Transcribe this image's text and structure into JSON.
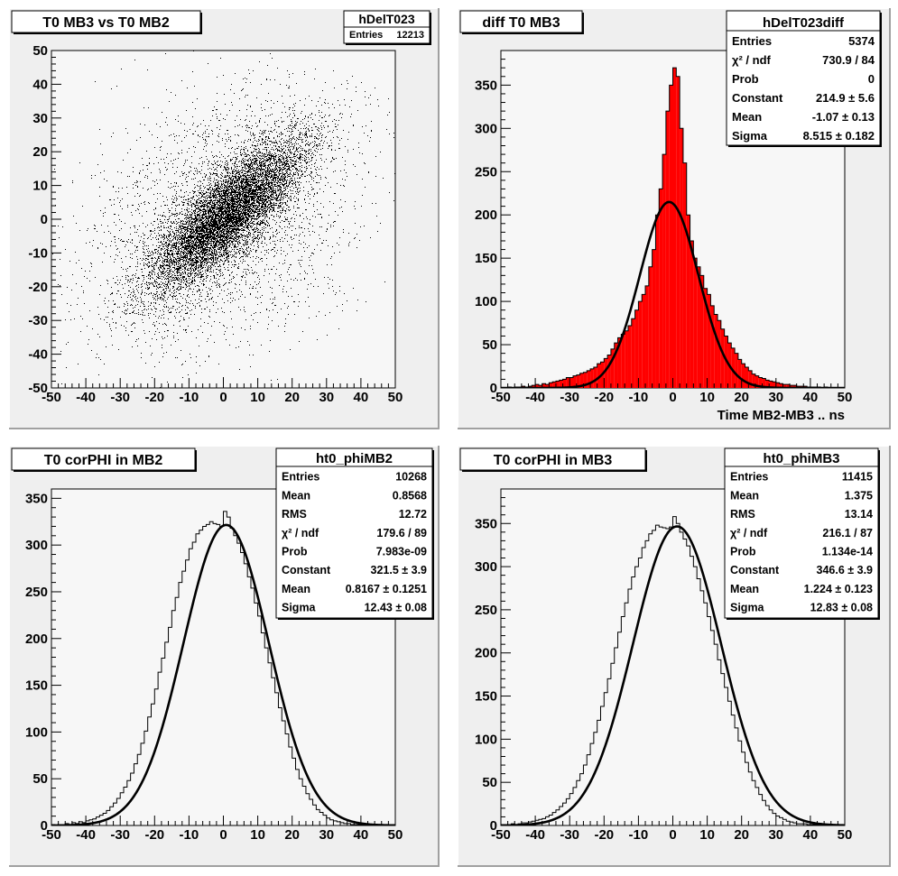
{
  "canvas": {
    "background": "#ffffff",
    "pad_fill": "#efefef",
    "frame_fill": "#f7f7f7",
    "hist_fill": "#ff0000",
    "ink": "#000000"
  },
  "chart_data": [
    {
      "type": "scatter",
      "title": "T0 MB3 vs T0 MB2",
      "xlabel": "",
      "ylabel": "",
      "xlim": [
        -50,
        50
      ],
      "ylim": [
        -50,
        50
      ],
      "xticks": [
        -50,
        -40,
        -30,
        -20,
        -10,
        0,
        10,
        20,
        30,
        40,
        50
      ],
      "yticks": [
        -50,
        -40,
        -30,
        -20,
        -10,
        0,
        10,
        20,
        30,
        40,
        50
      ],
      "stats": {
        "name": "hDelT023",
        "rows": [
          {
            "label": "Entries",
            "value": "12213"
          }
        ]
      },
      "entries": 12213,
      "distribution": {
        "core": {
          "fraction": 0.74,
          "mean_x": 1.0,
          "mean_y": 1.5,
          "sigma": 11.5,
          "correlation": 0.82
        },
        "halo": {
          "fraction": 0.26,
          "mean_x": 0,
          "mean_y": 0,
          "sigma": 20,
          "correlation": 0.3
        }
      }
    },
    {
      "type": "bar",
      "title": "diff T0 MB3",
      "xlabel": "Time MB2-MB3  ..  ns",
      "ylabel": "",
      "xlim": [
        -50,
        50
      ],
      "ylim": [
        0,
        390
      ],
      "xticks": [
        -50,
        -40,
        -30,
        -20,
        -10,
        0,
        10,
        20,
        30,
        40,
        50
      ],
      "yticks": [
        0,
        50,
        100,
        150,
        200,
        250,
        300,
        350
      ],
      "stats": {
        "name": "hDelT023diff",
        "rows": [
          {
            "label": "Entries",
            "value": "5374"
          },
          {
            "label": "χ² / ndf",
            "value": "730.9 / 84"
          },
          {
            "label": "Prob",
            "value": "0"
          },
          {
            "label": "Constant",
            "value": "214.9 ± 5.6"
          },
          {
            "label": "Mean",
            "value": "-1.07 ± 0.13"
          },
          {
            "label": "Sigma",
            "value": "8.515 ± 0.182"
          }
        ]
      },
      "fit": {
        "function": "gaus",
        "constant": 214.9,
        "mean": -1.07,
        "sigma": 8.515
      },
      "bin_width": 1,
      "x": [
        -50,
        -49,
        -48,
        -47,
        -46,
        -45,
        -44,
        -43,
        -42,
        -41,
        -40,
        -39,
        -38,
        -37,
        -36,
        -35,
        -34,
        -33,
        -32,
        -31,
        -30,
        -29,
        -28,
        -27,
        -26,
        -25,
        -24,
        -23,
        -22,
        -21,
        -20,
        -19,
        -18,
        -17,
        -16,
        -15,
        -14,
        -13,
        -12,
        -11,
        -10,
        -9,
        -8,
        -7,
        -6,
        -5,
        -4,
        -3,
        -2,
        -1,
        0,
        1,
        2,
        3,
        4,
        5,
        6,
        7,
        8,
        9,
        10,
        11,
        12,
        13,
        14,
        15,
        16,
        17,
        18,
        19,
        20,
        21,
        22,
        23,
        24,
        25,
        26,
        27,
        28,
        29,
        30,
        31,
        32,
        33,
        34,
        35,
        36,
        37,
        38,
        39,
        40,
        41,
        42,
        43,
        44,
        45,
        46,
        47,
        48,
        49
      ],
      "values": [
        0,
        0,
        1,
        0,
        1,
        1,
        2,
        1,
        2,
        3,
        4,
        3,
        5,
        4,
        6,
        7,
        8,
        9,
        10,
        12,
        12,
        14,
        15,
        17,
        18,
        20,
        22,
        24,
        28,
        30,
        34,
        38,
        45,
        52,
        58,
        62,
        66,
        72,
        80,
        90,
        100,
        108,
        118,
        140,
        160,
        200,
        230,
        270,
        320,
        350,
        370,
        360,
        300,
        260,
        200,
        170,
        150,
        140,
        130,
        115,
        108,
        95,
        85,
        78,
        68,
        60,
        52,
        46,
        40,
        33,
        28,
        24,
        20,
        16,
        14,
        12,
        11,
        9,
        8,
        7,
        6,
        5,
        4,
        4,
        3,
        3,
        2,
        2,
        2,
        1,
        1,
        1,
        1,
        0,
        1,
        0,
        0,
        0,
        0,
        0
      ]
    },
    {
      "type": "bar",
      "title": "T0 corPHI in MB2",
      "xlabel": "",
      "ylabel": "",
      "xlim": [
        -50,
        50
      ],
      "ylim": [
        0,
        360
      ],
      "xticks": [
        -50,
        -40,
        -30,
        -20,
        -10,
        0,
        10,
        20,
        30,
        40,
        50
      ],
      "yticks": [
        0,
        50,
        100,
        150,
        200,
        250,
        300,
        350
      ],
      "stats": {
        "name": "ht0_phiMB2",
        "rows": [
          {
            "label": "Entries",
            "value": "10268"
          },
          {
            "label": "Mean",
            "value": "0.8568"
          },
          {
            "label": "RMS",
            "value": "12.72"
          },
          {
            "label": "χ² / ndf",
            "value": "179.6 / 89"
          },
          {
            "label": "Prob",
            "value": "7.983e-09"
          },
          {
            "label": "Constant",
            "value": "321.5 ± 3.9"
          },
          {
            "label": "Mean",
            "value": "0.8167 ± 0.1251"
          },
          {
            "label": "Sigma",
            "value": "12.43 ± 0.08"
          }
        ]
      },
      "fit": {
        "function": "gaus",
        "constant": 321.5,
        "mean": 0.8167,
        "sigma": 12.43
      },
      "bin_width": 1,
      "x": [
        -50,
        -49,
        -48,
        -47,
        -46,
        -45,
        -44,
        -43,
        -42,
        -41,
        -40,
        -39,
        -38,
        -37,
        -36,
        -35,
        -34,
        -33,
        -32,
        -31,
        -30,
        -29,
        -28,
        -27,
        -26,
        -25,
        -24,
        -23,
        -22,
        -21,
        -20,
        -19,
        -18,
        -17,
        -16,
        -15,
        -14,
        -13,
        -12,
        -11,
        -10,
        -9,
        -8,
        -7,
        -6,
        -5,
        -4,
        -3,
        -2,
        -1,
        0,
        1,
        2,
        3,
        4,
        5,
        6,
        7,
        8,
        9,
        10,
        11,
        12,
        13,
        14,
        15,
        16,
        17,
        18,
        19,
        20,
        21,
        22,
        23,
        24,
        25,
        26,
        27,
        28,
        29,
        30,
        31,
        32,
        33,
        34,
        35,
        36,
        37,
        38,
        39,
        40,
        41,
        42,
        43,
        44,
        45,
        46,
        47,
        48,
        49
      ],
      "values": [
        1,
        0,
        1,
        1,
        2,
        1,
        3,
        2,
        4,
        3,
        5,
        6,
        7,
        9,
        11,
        13,
        16,
        20,
        24,
        29,
        35,
        41,
        48,
        56,
        66,
        76,
        88,
        101,
        116,
        130,
        146,
        164,
        179,
        196,
        212,
        230,
        244,
        260,
        272,
        284,
        296,
        303,
        312,
        316,
        320,
        322,
        325,
        323,
        322,
        320,
        336,
        330,
        318,
        310,
        302,
        292,
        280,
        266,
        254,
        238,
        224,
        206,
        190,
        174,
        158,
        142,
        126,
        112,
        98,
        84,
        72,
        60,
        50,
        42,
        34,
        28,
        22,
        17,
        14,
        11,
        8,
        6,
        5,
        4,
        3,
        2,
        2,
        1,
        1,
        1,
        1,
        0,
        1,
        0,
        0,
        0,
        0,
        0,
        0,
        0
      ]
    },
    {
      "type": "bar",
      "title": "T0 corPHI in MB3",
      "xlabel": "",
      "ylabel": "",
      "xlim": [
        -50,
        50
      ],
      "ylim": [
        0,
        390
      ],
      "xticks": [
        -50,
        -40,
        -30,
        -20,
        -10,
        0,
        10,
        20,
        30,
        40,
        50
      ],
      "yticks": [
        0,
        50,
        100,
        150,
        200,
        250,
        300,
        350
      ],
      "stats": {
        "name": "ht0_phiMB3",
        "rows": [
          {
            "label": "Entries",
            "value": "11415"
          },
          {
            "label": "Mean",
            "value": "1.375"
          },
          {
            "label": "RMS",
            "value": "13.14"
          },
          {
            "label": "χ² / ndf",
            "value": "216.1 / 87"
          },
          {
            "label": "Prob",
            "value": "1.134e-14"
          },
          {
            "label": "Constant",
            "value": "346.6 ± 3.9"
          },
          {
            "label": "Mean",
            "value": "1.224 ± 0.123"
          },
          {
            "label": "Sigma",
            "value": "12.83 ± 0.08"
          }
        ]
      },
      "fit": {
        "function": "gaus",
        "constant": 346.6,
        "mean": 1.224,
        "sigma": 12.83
      },
      "bin_width": 1,
      "x": [
        -50,
        -49,
        -48,
        -47,
        -46,
        -45,
        -44,
        -43,
        -42,
        -41,
        -40,
        -39,
        -38,
        -37,
        -36,
        -35,
        -34,
        -33,
        -32,
        -31,
        -30,
        -29,
        -28,
        -27,
        -26,
        -25,
        -24,
        -23,
        -22,
        -21,
        -20,
        -19,
        -18,
        -17,
        -16,
        -15,
        -14,
        -13,
        -12,
        -11,
        -10,
        -9,
        -8,
        -7,
        -6,
        -5,
        -4,
        -3,
        -2,
        -1,
        0,
        1,
        2,
        3,
        4,
        5,
        6,
        7,
        8,
        9,
        10,
        11,
        12,
        13,
        14,
        15,
        16,
        17,
        18,
        19,
        20,
        21,
        22,
        23,
        24,
        25,
        26,
        27,
        28,
        29,
        30,
        31,
        32,
        33,
        34,
        35,
        36,
        37,
        38,
        39,
        40,
        41,
        42,
        43,
        44,
        45,
        46,
        47,
        48,
        49
      ],
      "values": [
        1,
        1,
        0,
        2,
        1,
        2,
        3,
        3,
        4,
        5,
        6,
        7,
        8,
        10,
        12,
        15,
        18,
        22,
        26,
        31,
        37,
        44,
        52,
        60,
        70,
        82,
        95,
        108,
        122,
        138,
        154,
        170,
        188,
        206,
        224,
        242,
        258,
        274,
        288,
        300,
        310,
        322,
        330,
        338,
        342,
        348,
        346,
        345,
        344,
        346,
        358,
        350,
        340,
        332,
        324,
        312,
        300,
        286,
        272,
        258,
        242,
        226,
        210,
        192,
        176,
        160,
        144,
        128,
        113,
        98,
        85,
        73,
        62,
        52,
        44,
        36,
        29,
        23,
        18,
        14,
        11,
        9,
        7,
        5,
        4,
        3,
        2,
        2,
        2,
        1,
        1,
        1,
        1,
        0,
        1,
        0,
        0,
        0,
        0,
        0
      ]
    }
  ]
}
